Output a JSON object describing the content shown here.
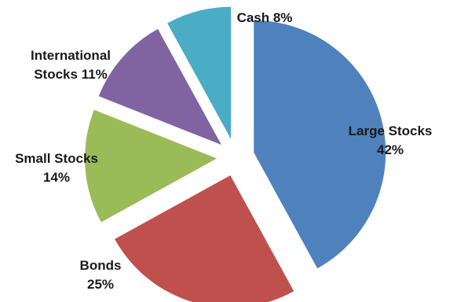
{
  "chart_data": {
    "type": "pie",
    "exploded": true,
    "title": "",
    "slices": [
      {
        "label": "Large Stocks",
        "value": 42,
        "display": [
          "Large Stocks",
          "42%"
        ],
        "color": "#4f81bd"
      },
      {
        "label": "Bonds",
        "value": 25,
        "display": [
          "Bonds",
          "25%"
        ],
        "color": "#c0504d"
      },
      {
        "label": "Small Stocks",
        "value": 14,
        "display": [
          "Small  Stocks",
          "14%"
        ],
        "color": "#9bbb59"
      },
      {
        "label": "International Stocks",
        "value": 11,
        "display": [
          "International",
          "Stocks 11%"
        ],
        "color": "#8064a2"
      },
      {
        "label": "Cash",
        "value": 8,
        "display": [
          "Cash 8%"
        ],
        "color": "#4bacc6"
      }
    ],
    "legend": "none"
  }
}
